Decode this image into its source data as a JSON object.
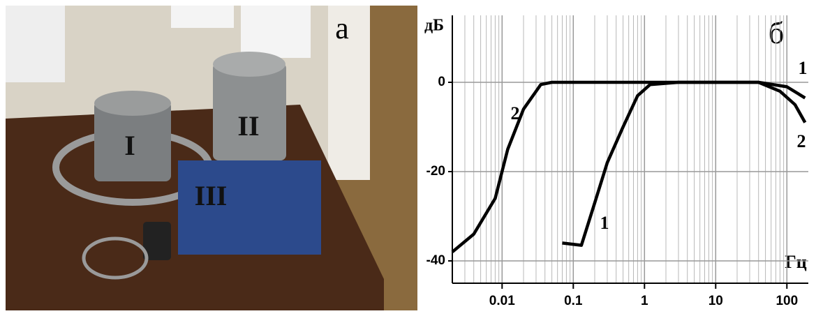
{
  "photo": {
    "panel_label": "а",
    "labels": [
      "I",
      "II",
      "III"
    ]
  },
  "chart_data": {
    "type": "line",
    "panel_label": "б",
    "ylabel": "дБ",
    "xlabel": "Гц",
    "xscale": "log",
    "xlim": [
      0.002,
      200
    ],
    "ylim": [
      -45,
      15
    ],
    "xticks": [
      0.01,
      0.1,
      1,
      10,
      100
    ],
    "xminorticks": [
      0.003,
      0.004,
      0.005,
      0.006,
      0.007,
      0.008,
      0.009,
      0.02,
      0.03,
      0.04,
      0.05,
      0.06,
      0.07,
      0.08,
      0.09,
      0.2,
      0.3,
      0.4,
      0.5,
      0.6,
      0.7,
      0.8,
      0.9,
      2,
      3,
      4,
      5,
      6,
      7,
      8,
      9,
      20,
      30,
      40,
      50,
      60,
      70,
      80,
      90
    ],
    "yticks": [
      0,
      -20,
      -40
    ],
    "grid": true,
    "series": [
      {
        "name": "1",
        "color": "#000000",
        "x": [
          0.07,
          0.13,
          0.2,
          0.3,
          0.5,
          0.8,
          1.2,
          3,
          10,
          40,
          100,
          180
        ],
        "values": [
          -36,
          -36.5,
          -27,
          -18,
          -10,
          -3,
          -0.5,
          0,
          0,
          0,
          -1,
          -3.5
        ]
      },
      {
        "name": "2",
        "color": "#000000",
        "x": [
          0.002,
          0.004,
          0.008,
          0.012,
          0.02,
          0.035,
          0.05,
          1,
          10,
          40,
          80,
          130,
          180
        ],
        "values": [
          -38,
          -34,
          -26,
          -15,
          -6,
          -0.5,
          0,
          0,
          0,
          0,
          -2,
          -5,
          -9
        ]
      }
    ]
  }
}
